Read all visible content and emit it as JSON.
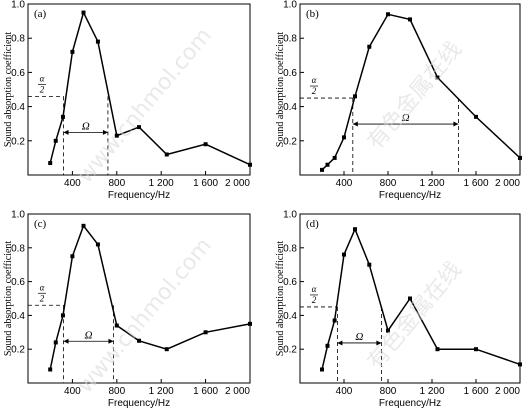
{
  "watermark": {
    "text": "www.cnhmol.com",
    "cjk": "有色金属在线"
  },
  "chart_data": [
    {
      "panel": "(a)",
      "type": "line",
      "xlabel": "Frequency/Hz",
      "ylabel": "Sound absorption coefficient",
      "xlim": [
        0,
        2000
      ],
      "ylim": [
        0,
        1.0
      ],
      "xticks": [
        400,
        800,
        1200,
        1600,
        2000
      ],
      "xtick_labels": [
        "400",
        "800",
        "1 200",
        "1 600",
        "2 000"
      ],
      "yticks": [
        0.2,
        0.4,
        0.6,
        0.8,
        1.0
      ],
      "ytick_labels": [
        "0.2",
        "0.4",
        "0.6",
        "0.8",
        "1.0"
      ],
      "x": [
        200,
        250,
        315,
        400,
        500,
        630,
        800,
        1000,
        1250,
        1600,
        2000
      ],
      "y": [
        0.07,
        0.2,
        0.34,
        0.72,
        0.95,
        0.78,
        0.23,
        0.28,
        0.12,
        0.18,
        0.06
      ],
      "half_value_level": 0.46,
      "omega_range": [
        320,
        720
      ],
      "alpha_label": "α",
      "alpha_den": "2",
      "omega_label": "Ω"
    },
    {
      "panel": "(b)",
      "type": "line",
      "xlabel": "Frequency/Hz",
      "ylabel": "Sound absorption coefficient",
      "xlim": [
        0,
        2000
      ],
      "ylim": [
        0,
        1.0
      ],
      "xticks": [
        400,
        800,
        1200,
        1600,
        2000
      ],
      "xtick_labels": [
        "400",
        "800",
        "1 200",
        "1 600",
        "2 000"
      ],
      "yticks": [
        0.2,
        0.4,
        0.6,
        0.8,
        1.0
      ],
      "ytick_labels": [
        "0.2",
        "0.4",
        "0.6",
        "0.8",
        "1.0"
      ],
      "x": [
        200,
        250,
        315,
        400,
        500,
        630,
        800,
        1000,
        1250,
        1600,
        2000
      ],
      "y": [
        0.03,
        0.06,
        0.1,
        0.22,
        0.46,
        0.75,
        0.94,
        0.91,
        0.57,
        0.34,
        0.1
      ],
      "half_value_level": 0.45,
      "omega_range": [
        480,
        1440
      ],
      "alpha_label": "α",
      "alpha_den": "2",
      "omega_label": "Ω"
    },
    {
      "panel": "(c)",
      "type": "line",
      "xlabel": "Frequency/Hz",
      "ylabel": "Sound absorption coefficient",
      "xlim": [
        0,
        2000
      ],
      "ylim": [
        0,
        1.0
      ],
      "xticks": [
        400,
        800,
        1200,
        1600,
        2000
      ],
      "xtick_labels": [
        "400",
        "800",
        "1 200",
        "1 600",
        "2 000"
      ],
      "yticks": [
        0.2,
        0.4,
        0.6,
        0.8,
        1.0
      ],
      "ytick_labels": [
        "0.2",
        "0.4",
        "0.6",
        "0.8",
        "1.0"
      ],
      "x": [
        200,
        250,
        315,
        400,
        500,
        630,
        800,
        1000,
        1250,
        1600,
        2000
      ],
      "y": [
        0.08,
        0.24,
        0.4,
        0.75,
        0.93,
        0.82,
        0.34,
        0.25,
        0.2,
        0.3,
        0.35
      ],
      "half_value_level": 0.46,
      "omega_range": [
        320,
        770
      ],
      "alpha_label": "α",
      "alpha_den": "2",
      "omega_label": "Ω"
    },
    {
      "panel": "(d)",
      "type": "line",
      "xlabel": "Frequency/Hz",
      "ylabel": "Sound absorption coefficient",
      "xlim": [
        0,
        2000
      ],
      "ylim": [
        0,
        1.0
      ],
      "xticks": [
        400,
        800,
        1200,
        1600,
        2000
      ],
      "xtick_labels": [
        "400",
        "800",
        "1 200",
        "1 600",
        "2 000"
      ],
      "yticks": [
        0.2,
        0.4,
        0.6,
        0.8,
        1.0
      ],
      "ytick_labels": [
        "0.2",
        "0.4",
        "0.6",
        "0.8",
        "1.0"
      ],
      "x": [
        200,
        250,
        315,
        400,
        500,
        630,
        800,
        1000,
        1250,
        1600,
        2000
      ],
      "y": [
        0.08,
        0.22,
        0.37,
        0.76,
        0.91,
        0.7,
        0.31,
        0.5,
        0.2,
        0.2,
        0.11
      ],
      "half_value_level": 0.45,
      "omega_range": [
        340,
        740
      ],
      "alpha_label": "α",
      "alpha_den": "2",
      "omega_label": "Ω"
    }
  ]
}
